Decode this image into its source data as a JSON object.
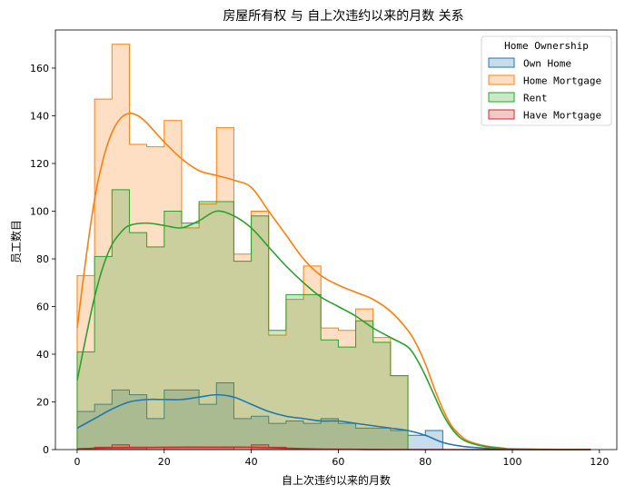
{
  "chart_data": {
    "type": "histogram",
    "title": "房屋所有权 与 自上次违约以来的月数 关系",
    "xlabel": "自上次违约以来的月数",
    "ylabel": "员工数目",
    "xlim": [
      -5,
      124
    ],
    "ylim": [
      0,
      176
    ],
    "xticks": [
      0,
      20,
      40,
      60,
      80,
      100,
      120
    ],
    "yticks": [
      0,
      20,
      40,
      60,
      80,
      100,
      120,
      140,
      160
    ],
    "bin_edges": [
      0,
      4,
      8,
      12,
      16,
      20,
      24,
      28,
      32,
      36,
      40,
      44,
      48,
      52,
      56,
      60,
      64,
      68,
      72,
      76,
      80,
      84
    ],
    "legend": {
      "title": "Home Ownership",
      "position": "upper-right"
    },
    "series": [
      {
        "name": "Own Home",
        "color": "#1f77b4",
        "fill": "#c6dbef",
        "counts": [
          16,
          19,
          25,
          23,
          13,
          25,
          25,
          19,
          28,
          13,
          14,
          11,
          12,
          11,
          13,
          11,
          9,
          9,
          8,
          6,
          8
        ],
        "kde": [
          [
            0,
            9
          ],
          [
            4,
            13
          ],
          [
            8,
            17
          ],
          [
            12,
            20
          ],
          [
            16,
            21
          ],
          [
            20,
            21
          ],
          [
            24,
            21
          ],
          [
            28,
            22
          ],
          [
            32,
            23
          ],
          [
            36,
            22
          ],
          [
            40,
            19
          ],
          [
            44,
            16
          ],
          [
            48,
            14
          ],
          [
            52,
            13
          ],
          [
            56,
            12
          ],
          [
            60,
            12
          ],
          [
            64,
            11
          ],
          [
            68,
            10
          ],
          [
            72,
            9
          ],
          [
            76,
            8
          ],
          [
            80,
            6
          ],
          [
            84,
            3
          ],
          [
            88,
            1.5
          ],
          [
            92,
            0.8
          ],
          [
            96,
            0.3
          ],
          [
            100,
            0.1
          ],
          [
            110,
            0
          ],
          [
            118,
            0
          ]
        ]
      },
      {
        "name": "Home Mortgage",
        "color": "#ff7f0e",
        "fill": "#ffdab8",
        "counts": [
          73,
          147,
          170,
          128,
          127,
          138,
          93,
          103,
          135,
          82,
          100,
          48,
          63,
          77,
          51,
          50,
          59,
          47,
          31,
          0,
          0
        ],
        "kde": [
          [
            0,
            51
          ],
          [
            2,
            80
          ],
          [
            4,
            105
          ],
          [
            6,
            122
          ],
          [
            8,
            133
          ],
          [
            10,
            139
          ],
          [
            12,
            141
          ],
          [
            14,
            140
          ],
          [
            16,
            137
          ],
          [
            20,
            129
          ],
          [
            24,
            122
          ],
          [
            28,
            117
          ],
          [
            32,
            115
          ],
          [
            36,
            113
          ],
          [
            40,
            110
          ],
          [
            44,
            100
          ],
          [
            48,
            90
          ],
          [
            52,
            80
          ],
          [
            56,
            73
          ],
          [
            60,
            69
          ],
          [
            64,
            66
          ],
          [
            68,
            63
          ],
          [
            72,
            58
          ],
          [
            76,
            50
          ],
          [
            78,
            44
          ],
          [
            80,
            36
          ],
          [
            82,
            26
          ],
          [
            84,
            17
          ],
          [
            86,
            10
          ],
          [
            88,
            6
          ],
          [
            90,
            3.5
          ],
          [
            94,
            1.5
          ],
          [
            98,
            0.6
          ],
          [
            100,
            0.3
          ],
          [
            110,
            0.1
          ],
          [
            118,
            0
          ]
        ]
      },
      {
        "name": "Rent",
        "color": "#2ca02c",
        "fill": "#c9e7c3",
        "counts": [
          41,
          81,
          109,
          91,
          85,
          100,
          95,
          104,
          104,
          79,
          98,
          50,
          65,
          65,
          46,
          43,
          54,
          45,
          31,
          0,
          0
        ],
        "kde": [
          [
            0,
            29
          ],
          [
            2,
            47
          ],
          [
            4,
            64
          ],
          [
            6,
            77
          ],
          [
            8,
            86
          ],
          [
            10,
            91
          ],
          [
            12,
            94
          ],
          [
            16,
            95
          ],
          [
            20,
            94
          ],
          [
            24,
            93
          ],
          [
            28,
            96
          ],
          [
            32,
            100
          ],
          [
            36,
            98
          ],
          [
            40,
            93
          ],
          [
            44,
            85
          ],
          [
            48,
            77
          ],
          [
            52,
            70
          ],
          [
            56,
            64
          ],
          [
            60,
            60
          ],
          [
            64,
            56
          ],
          [
            68,
            51
          ],
          [
            72,
            47
          ],
          [
            76,
            43
          ],
          [
            78,
            38
          ],
          [
            80,
            31
          ],
          [
            82,
            23
          ],
          [
            84,
            15
          ],
          [
            86,
            9
          ],
          [
            88,
            5
          ],
          [
            90,
            3
          ],
          [
            94,
            1.2
          ],
          [
            98,
            0.5
          ],
          [
            100,
            0.2
          ],
          [
            110,
            0.05
          ],
          [
            118,
            0
          ]
        ]
      },
      {
        "name": "Have Mortgage",
        "color": "#d62728",
        "fill": "#f2c1c1",
        "counts": [
          0,
          1,
          2,
          1,
          0,
          1,
          1,
          1,
          1,
          0,
          2,
          1,
          0,
          0,
          0,
          0,
          0,
          0,
          0,
          0,
          0
        ],
        "kde": [
          [
            0,
            0.3
          ],
          [
            8,
            0.8
          ],
          [
            16,
            0.9
          ],
          [
            24,
            1
          ],
          [
            32,
            1
          ],
          [
            40,
            1
          ],
          [
            48,
            0.6
          ],
          [
            56,
            0.2
          ],
          [
            64,
            0.1
          ],
          [
            72,
            0
          ],
          [
            118,
            0
          ]
        ]
      }
    ]
  }
}
